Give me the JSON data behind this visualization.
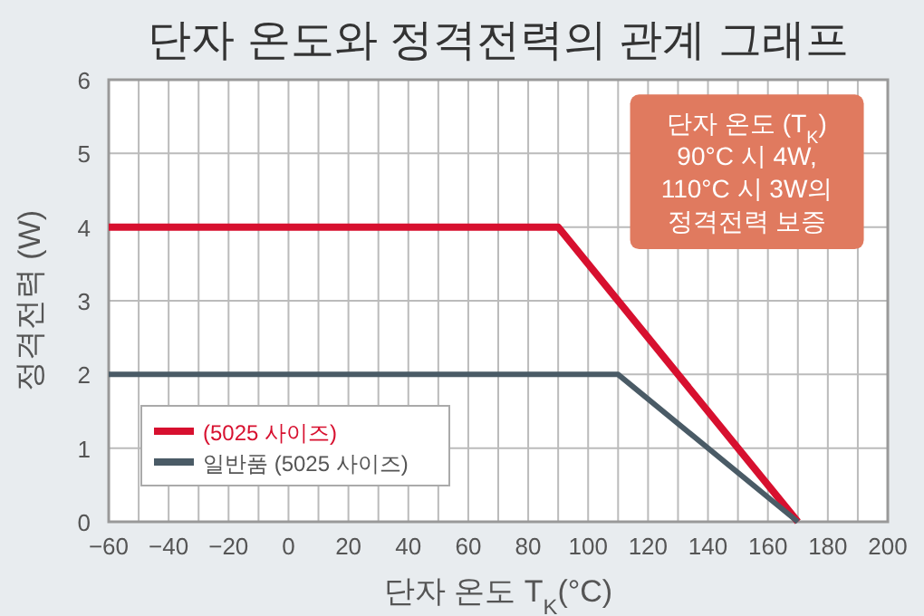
{
  "chart_data": {
    "type": "line",
    "title": "단자 온도와 정격전력의 관계 그래프",
    "xlabel": "단자 온도  T$_{K}$(°C)",
    "ylabel": "정격전력 (W)",
    "series": [
      {
        "name": "(5025 사이즈)",
        "color": "#d7102f",
        "x": [
          -60,
          90,
          170
        ],
        "values": [
          4,
          4,
          0
        ]
      },
      {
        "name": "일반품 (5025 사이즈)",
        "color": "#4a5b66",
        "x": [
          -60,
          110,
          170
        ],
        "values": [
          2,
          2,
          0
        ]
      }
    ],
    "xlim": [
      -60,
      200
    ],
    "xticks": [
      {
        "value": -60,
        "label": "−60"
      },
      {
        "value": -50,
        "label": null
      },
      {
        "value": -40,
        "label": "−40"
      },
      {
        "value": -30,
        "label": null
      },
      {
        "value": -20,
        "label": "−20"
      },
      {
        "value": -10,
        "label": null
      },
      0,
      {
        "value": 10,
        "label": null
      },
      20,
      {
        "value": 30,
        "label": null
      },
      40,
      {
        "value": 50,
        "label": null
      },
      60,
      {
        "value": 70,
        "label": null
      },
      80,
      {
        "value": 90,
        "label": null
      },
      100,
      {
        "value": 110,
        "label": null
      },
      120,
      {
        "value": 130,
        "label": null
      },
      140,
      {
        "value": 150,
        "label": null
      },
      160,
      {
        "value": 170,
        "label": null
      },
      180,
      {
        "value": 190,
        "label": null
      },
      200
    ],
    "ylim": [
      0,
      6
    ],
    "yticks": [
      0,
      1,
      2,
      3,
      4,
      5,
      6
    ],
    "grid": true,
    "legend": "bottom left",
    "marker": "none",
    "line_style": "solid",
    "annotations": [
      "단자 온도 (T$_{K}$)\n90°C 시 4W,\n110°C 시 3W의\n정격전력 보증"
    ]
  }
}
